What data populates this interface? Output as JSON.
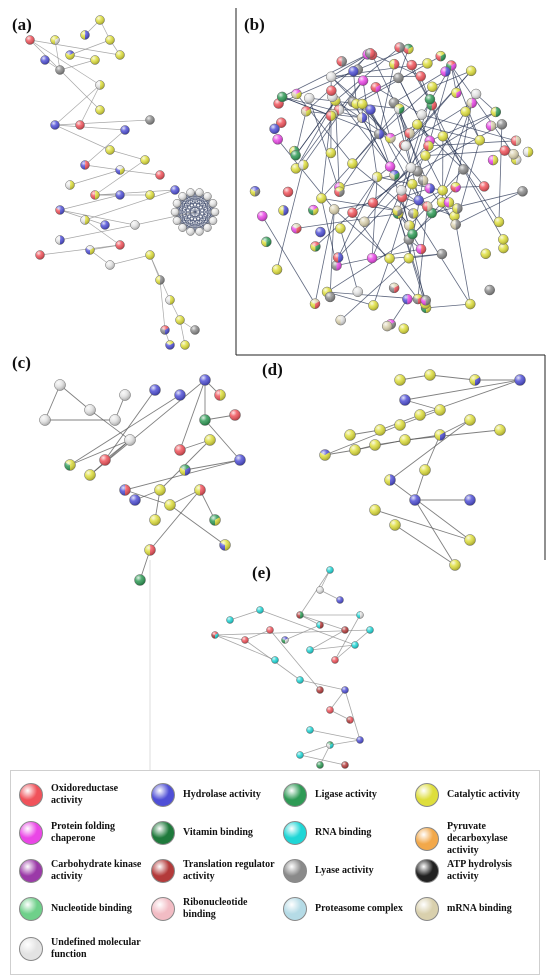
{
  "panels": {
    "a": "(a)",
    "b": "(b)",
    "c": "(c)",
    "d": "(d)",
    "e": "(e)"
  },
  "legend": [
    {
      "label": "Oxidoreductase activity",
      "color": "#f0525a"
    },
    {
      "label": "Hydrolase activity",
      "color": "#4f4fd6"
    },
    {
      "label": "Ligase activity",
      "color": "#2e9a55"
    },
    {
      "label": "Catalytic activity",
      "color": "#dede3c"
    },
    {
      "label": "Protein folding chaperone",
      "color": "#ea46e6"
    },
    {
      "label": "Vitamin binding",
      "color": "#1f7a3c"
    },
    {
      "label": "RNA binding",
      "color": "#1fd6d6"
    },
    {
      "label": "Pyruvate decarboxylase activity",
      "color": "#f2a84a"
    },
    {
      "label": "Carbohydrate kinase activity",
      "color": "#9b3aa8"
    },
    {
      "label": "Translation regulator activity",
      "color": "#b33a3a"
    },
    {
      "label": "Lyase activity",
      "color": "#8a8a8a"
    },
    {
      "label": "ATP hydrolysis activity",
      "color": "#222222"
    },
    {
      "label": "Nucleotide binding",
      "color": "#6fd08a"
    },
    {
      "label": "Ribonucleotide binding",
      "color": "#f2bcc4"
    },
    {
      "label": "Proteasome complex",
      "color": "#b5dbe6"
    },
    {
      "label": "mRNA binding",
      "color": "#d9d0ad"
    },
    {
      "label": "Undefined molecular function",
      "color": "#e3e3e3"
    }
  ]
}
